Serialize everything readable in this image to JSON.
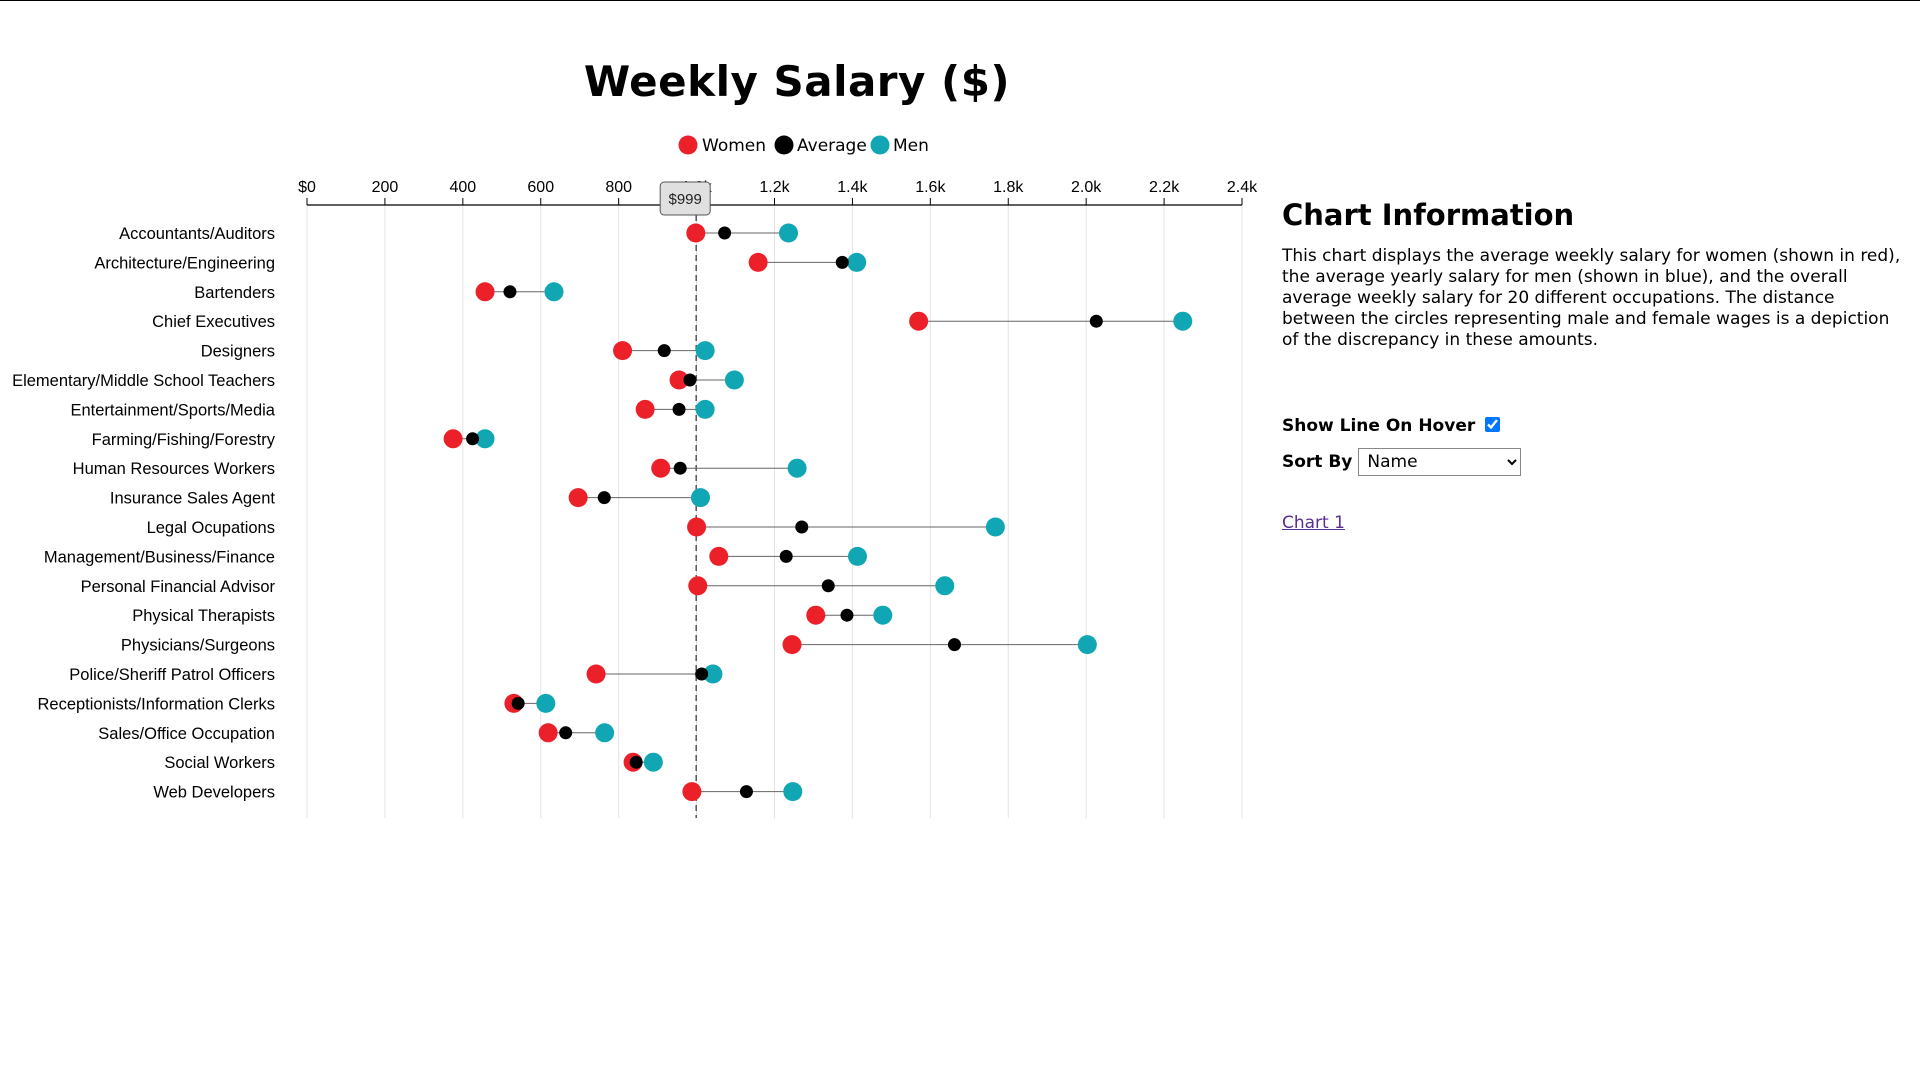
{
  "chart_data": {
    "type": "dot-plot",
    "title": "Weekly Salary ($)",
    "legend": [
      {
        "label": "Women",
        "color": "#ec2029"
      },
      {
        "label": "Average",
        "color": "#000000"
      },
      {
        "label": "Men",
        "color": "#11a6b4"
      }
    ],
    "x_ticks": [
      "$0",
      "200",
      "400",
      "600",
      "800",
      "1.0k",
      "1.2k",
      "1.4k",
      "1.6k",
      "1.8k",
      "2.0k",
      "2.2k",
      "2.4k"
    ],
    "xlim": [
      0,
      2400
    ],
    "grid": true,
    "overall_average": 999,
    "overall_average_label": "$999",
    "categories": [
      "Accountants/Auditors",
      "Architecture/Engineering",
      "Bartenders",
      "Chief Executives",
      "Designers",
      "Elementary/Middle School Teachers",
      "Entertainment/Sports/Media",
      "Farming/Fishing/Forestry",
      "Human Resources Workers",
      "Insurance Sales Agent",
      "Legal Ocupations",
      "Management/Business/Finance",
      "Personal Financial Advisor",
      "Physical Therapists",
      "Physicians/Surgeons",
      "Police/Sheriff Patrol Officers",
      "Receptionists/Information Clerks",
      "Sales/Office Occupation",
      "Social Workers",
      "Web Developers"
    ],
    "series": [
      {
        "name": "Women",
        "values": [
          998,
          1158,
          457,
          1570,
          810,
          955,
          868,
          375,
          908,
          696,
          1000,
          1057,
          1003,
          1306,
          1245,
          742,
          531,
          619,
          837,
          988
        ]
      },
      {
        "name": "Average",
        "values": [
          1072,
          1374,
          521,
          2026,
          917,
          983,
          955,
          425,
          958,
          763,
          1270,
          1230,
          1338,
          1386,
          1662,
          1013,
          542,
          664,
          845,
          1128
        ]
      },
      {
        "name": "Men",
        "values": [
          1236,
          1411,
          634,
          2248,
          1022,
          1097,
          1022,
          457,
          1258,
          1010,
          1767,
          1413,
          1637,
          1478,
          2003,
          1042,
          613,
          764,
          889,
          1247
        ]
      }
    ]
  },
  "info": {
    "title": "Chart Information",
    "description": "This chart displays the average weekly salary for women (shown in red), the average yearly salary for men (shown in blue), and the overall average weekly salary for 20 different occupations. The distance between the circles representing male and female wages is a depiction of the discrepancy in these amounts."
  },
  "controls": {
    "show_line_label": "Show Line On Hover",
    "show_line_checked": true,
    "sort_label": "Sort By",
    "sort_selected": "Name",
    "link_text": "Chart 1"
  }
}
